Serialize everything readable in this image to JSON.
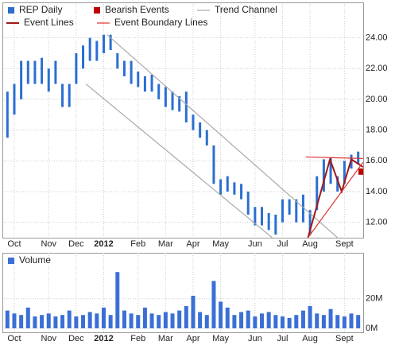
{
  "chart_data": [
    {
      "type": "range_bar",
      "categories": [
        null,
        "Oct",
        null,
        null,
        null,
        null,
        "Nov",
        null,
        null,
        null,
        "Dec",
        null,
        null,
        null,
        "2012",
        null,
        null,
        null,
        null,
        "Feb",
        null,
        null,
        null,
        "Mar",
        null,
        null,
        null,
        "Apr",
        null,
        null,
        null,
        "May",
        null,
        null,
        null,
        null,
        "Jun",
        null,
        null,
        null,
        "Jul",
        null,
        null,
        null,
        "Aug",
        null,
        null,
        null,
        null,
        "Sept",
        null,
        null
      ],
      "series": [
        {
          "name": "REP Daily",
          "color": "#2a6fd0",
          "high": [
            20.5,
            21,
            22.5,
            22.5,
            22.5,
            22.7,
            22,
            22.5,
            21,
            21,
            23,
            23.5,
            24,
            23.8,
            24.2,
            24.2,
            23,
            22.5,
            22.5,
            21.8,
            21.5,
            21.6,
            21,
            20.8,
            20.5,
            20.2,
            20.5,
            19,
            18.5,
            18,
            17,
            14.8,
            15,
            14.6,
            14.5,
            14,
            13,
            13,
            12.6,
            12.5,
            13.5,
            13.5,
            13.5,
            13.8,
            12.8,
            15,
            16.1,
            16.2,
            15,
            16,
            16.4,
            16.6
          ],
          "low": [
            17.5,
            19,
            20,
            21,
            21,
            21,
            20.5,
            21,
            19.5,
            19.5,
            21,
            22,
            22.5,
            22.5,
            23,
            23.2,
            22,
            21.5,
            21,
            20.8,
            20.5,
            20.5,
            20,
            19.5,
            19.3,
            19.2,
            18.5,
            18,
            17.5,
            17,
            14.5,
            13.8,
            14,
            13.8,
            13.5,
            12.5,
            11.8,
            11.8,
            11.5,
            11.2,
            12,
            12.5,
            12,
            12,
            11.2,
            12.8,
            14,
            14.5,
            14,
            14.5,
            15.5,
            15.8
          ]
        }
      ],
      "overlays": [
        {
          "name": "Bearish Events",
          "kind": "marker",
          "color": "#c00000",
          "x": [
            51.5
          ],
          "y": [
            15.3
          ]
        },
        {
          "name": "Trend Channel",
          "kind": "lines",
          "color": "#aaaaaa",
          "lines": [
            {
              "x": [
                14.5,
                48
              ],
              "y": [
                24.2,
                11
              ]
            },
            {
              "x": [
                11.4,
                38.5
              ],
              "y": [
                21,
                11
              ]
            }
          ]
        },
        {
          "name": "Event Lines",
          "kind": "lines",
          "color": "#a01818",
          "width": 2,
          "lines": [
            {
              "x": [
                43.7,
                46.9,
                48.6,
                50,
                51.7
              ],
              "y": [
                11,
                16.1,
                14,
                16.1,
                15.6
              ]
            }
          ]
        },
        {
          "name": "Event Boundary Lines",
          "kind": "lines",
          "color": "#e03030",
          "lines": [
            {
              "x": [
                43.4,
                51.7
              ],
              "y": [
                16.25,
                16.15
              ]
            },
            {
              "x": [
                43.7,
                51.7
              ],
              "y": [
                11,
                15.9
              ]
            }
          ]
        }
      ],
      "xlim": [
        -0.5,
        51.5
      ],
      "ylim": [
        11,
        26.2
      ],
      "yticks": [
        {
          "value": 12,
          "label": "12.00"
        },
        {
          "value": 14,
          "label": "14.00"
        },
        {
          "value": 16,
          "label": "16.00"
        },
        {
          "value": 18,
          "label": "18.00"
        },
        {
          "value": 20,
          "label": "20.00"
        },
        {
          "value": 22,
          "label": "22.00"
        },
        {
          "value": 24,
          "label": "24.00"
        }
      ],
      "grid": true
    },
    {
      "type": "bar",
      "series": [
        {
          "name": "Volume",
          "color": "#3b6fd6",
          "values": [
            12,
            10,
            9,
            14,
            8,
            9,
            10,
            8,
            9,
            12,
            8,
            9,
            11,
            10,
            14,
            9,
            38,
            12,
            10,
            9,
            14,
            10,
            9,
            11,
            10,
            12,
            15,
            22,
            11,
            9,
            32,
            18,
            14,
            9,
            11,
            12,
            8,
            10,
            11,
            9,
            8,
            7,
            9,
            12,
            15,
            10,
            9,
            13,
            9,
            8,
            10,
            9
          ]
        }
      ],
      "xlim": [
        -0.5,
        51.5
      ],
      "ylim": [
        -2.7,
        51
      ],
      "yticks": [
        {
          "value": 0,
          "label": "0M"
        },
        {
          "value": 20,
          "label": "20M"
        }
      ],
      "grid": true
    }
  ]
}
